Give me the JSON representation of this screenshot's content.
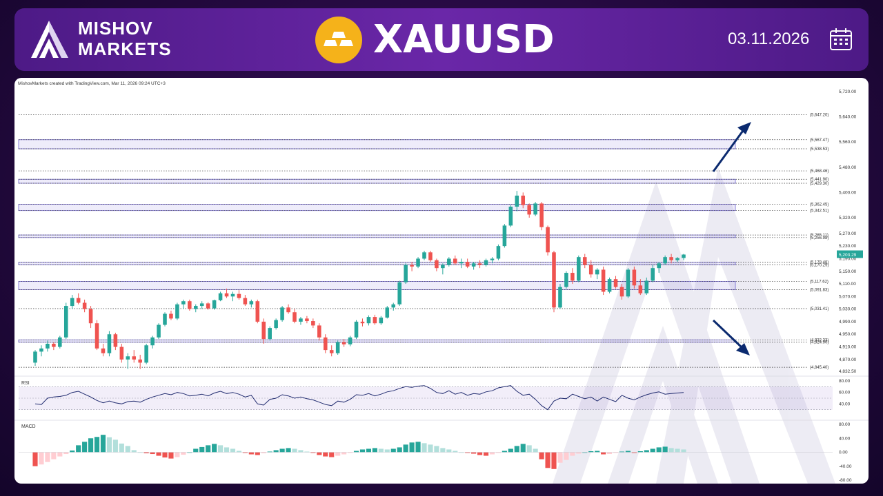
{
  "header": {
    "brand_line1": "MISHOV",
    "brand_line2": "MARKETS",
    "symbol": "XAUUSD",
    "date": "03.11.2026",
    "colors": {
      "header_bg": "#5b2097",
      "gold": "#f5b21a",
      "page_bg": "#24093f"
    }
  },
  "icons": {
    "logo": "mishov-logo-icon",
    "gold": "gold-bars-icon",
    "calendar": "calendar-icon"
  },
  "chart_meta": {
    "credit": "MishovMarkets created with TradingView.com, Mar 11, 2026 09:24 UTC+3",
    "rsi_title": "RSI",
    "macd_title": "MACD"
  },
  "chart_data": {
    "type": "candlestick",
    "price_axis": {
      "min": 4832.5,
      "max": 5720,
      "ticks": [
        "5,720.00",
        "5,640.00",
        "5,560.00",
        "5,480.00",
        "5,400.00",
        "5,320.00",
        "5,270.00",
        "5,230.00",
        "5,190.00",
        "5,150.00",
        "5,110.00",
        "5,070.00",
        "5,030.00",
        "4,990.00",
        "4,950.00",
        "4,910.00",
        "4,870.00",
        "4,832.50"
      ]
    },
    "current_price": "5,203.29",
    "levels": [
      "5,647.20",
      "5,567.47",
      "5,538.53",
      "5,468.46",
      "5,441.90",
      "5,429.30",
      "5,362.45",
      "5,342.51",
      "5,265.11",
      "5,256.98",
      "5,178.48",
      "5,170.29",
      "5,117.62",
      "5,091.83",
      "5,031.41",
      "4,932.33",
      "4,924.90",
      "4,845.40"
    ],
    "zones": [
      [
        5538.53,
        5567.47
      ],
      [
        5429.3,
        5441.9
      ],
      [
        5342.51,
        5362.45
      ],
      [
        5256.98,
        5265.11
      ],
      [
        5170.29,
        5178.48
      ],
      [
        5091.83,
        5117.62
      ],
      [
        4924.9,
        4932.33
      ]
    ],
    "candles": [
      [
        4860,
        4900,
        4850,
        4895
      ],
      [
        4895,
        4915,
        4880,
        4905
      ],
      [
        4905,
        4930,
        4895,
        4920
      ],
      [
        4920,
        4925,
        4900,
        4910
      ],
      [
        4910,
        4945,
        4905,
        4940
      ],
      [
        4940,
        5050,
        4935,
        5040
      ],
      [
        5040,
        5075,
        5030,
        5065
      ],
      [
        5065,
        5080,
        5045,
        5050
      ],
      [
        5050,
        5060,
        5020,
        5030
      ],
      [
        5030,
        5040,
        4970,
        4985
      ],
      [
        4985,
        4995,
        4900,
        4905
      ],
      [
        4905,
        4920,
        4880,
        4890
      ],
      [
        4890,
        4960,
        4880,
        4950
      ],
      [
        4950,
        4955,
        4900,
        4910
      ],
      [
        4910,
        4920,
        4860,
        4870
      ],
      [
        4870,
        4890,
        4840,
        4880
      ],
      [
        4880,
        4900,
        4860,
        4870
      ],
      [
        4870,
        4885,
        4840,
        4860
      ],
      [
        4860,
        4920,
        4855,
        4915
      ],
      [
        4915,
        4945,
        4905,
        4940
      ],
      [
        4940,
        4985,
        4935,
        4980
      ],
      [
        4980,
        5020,
        4975,
        5015
      ],
      [
        5015,
        5025,
        4995,
        5000
      ],
      [
        5000,
        5050,
        4995,
        5045
      ],
      [
        5045,
        5060,
        5030,
        5055
      ],
      [
        5055,
        5060,
        5025,
        5030
      ],
      [
        5030,
        5045,
        5020,
        5040
      ],
      [
        5040,
        5055,
        5030,
        5048
      ],
      [
        5048,
        5052,
        5028,
        5032
      ],
      [
        5032,
        5060,
        5028,
        5058
      ],
      [
        5058,
        5085,
        5055,
        5080
      ],
      [
        5080,
        5095,
        5065,
        5070
      ],
      [
        5070,
        5085,
        5055,
        5078
      ],
      [
        5078,
        5090,
        5060,
        5065
      ],
      [
        5065,
        5075,
        5040,
        5045
      ],
      [
        5045,
        5060,
        5035,
        5055
      ],
      [
        5055,
        5060,
        4985,
        4990
      ],
      [
        4990,
        5000,
        4920,
        4935
      ],
      [
        4935,
        4975,
        4930,
        4970
      ],
      [
        4970,
        5000,
        4965,
        4995
      ],
      [
        4995,
        5040,
        4990,
        5035
      ],
      [
        5035,
        5045,
        5015,
        5020
      ],
      [
        5020,
        5030,
        4985,
        4990
      ],
      [
        4990,
        5005,
        4980,
        5000
      ],
      [
        5000,
        5008,
        4985,
        4992
      ],
      [
        4992,
        5000,
        4970,
        4978
      ],
      [
        4978,
        4985,
        4930,
        4940
      ],
      [
        4940,
        4950,
        4890,
        4900
      ],
      [
        4900,
        4915,
        4880,
        4890
      ],
      [
        4890,
        4930,
        4885,
        4925
      ],
      [
        4925,
        4935,
        4910,
        4918
      ],
      [
        4918,
        4945,
        4912,
        4940
      ],
      [
        4940,
        4995,
        4935,
        4990
      ],
      [
        4990,
        5000,
        4975,
        4985
      ],
      [
        4985,
        5010,
        4978,
        5005
      ],
      [
        5005,
        5012,
        4980,
        4985
      ],
      [
        4985,
        5008,
        4980,
        5003
      ],
      [
        5003,
        5040,
        5000,
        5035
      ],
      [
        5035,
        5050,
        5025,
        5045
      ],
      [
        5045,
        5120,
        5040,
        5115
      ],
      [
        5115,
        5175,
        5110,
        5170
      ],
      [
        5170,
        5180,
        5150,
        5165
      ],
      [
        5165,
        5195,
        5160,
        5190
      ],
      [
        5190,
        5215,
        5185,
        5210
      ],
      [
        5210,
        5215,
        5180,
        5185
      ],
      [
        5185,
        5190,
        5150,
        5160
      ],
      [
        5160,
        5175,
        5140,
        5170
      ],
      [
        5170,
        5195,
        5165,
        5190
      ],
      [
        5190,
        5200,
        5170,
        5175
      ],
      [
        5175,
        5190,
        5160,
        5180
      ],
      [
        5180,
        5190,
        5160,
        5165
      ],
      [
        5165,
        5180,
        5155,
        5175
      ],
      [
        5175,
        5185,
        5160,
        5170
      ],
      [
        5170,
        5190,
        5165,
        5185
      ],
      [
        5185,
        5195,
        5175,
        5190
      ],
      [
        5190,
        5235,
        5185,
        5230
      ],
      [
        5230,
        5300,
        5225,
        5295
      ],
      [
        5295,
        5360,
        5290,
        5355
      ],
      [
        5355,
        5405,
        5340,
        5390
      ],
      [
        5390,
        5400,
        5350,
        5360
      ],
      [
        5360,
        5365,
        5320,
        5330
      ],
      [
        5330,
        5370,
        5325,
        5365
      ],
      [
        5365,
        5370,
        5280,
        5290
      ],
      [
        5290,
        5295,
        5200,
        5210
      ],
      [
        5210,
        5215,
        5020,
        5035
      ],
      [
        5035,
        5110,
        5030,
        5100
      ],
      [
        5100,
        5150,
        5095,
        5145
      ],
      [
        5145,
        5160,
        5110,
        5120
      ],
      [
        5120,
        5200,
        5115,
        5195
      ],
      [
        5195,
        5205,
        5160,
        5170
      ],
      [
        5170,
        5185,
        5130,
        5140
      ],
      [
        5140,
        5160,
        5125,
        5155
      ],
      [
        5155,
        5165,
        5075,
        5085
      ],
      [
        5085,
        5130,
        5080,
        5125
      ],
      [
        5125,
        5135,
        5095,
        5100
      ],
      [
        5100,
        5110,
        5060,
        5070
      ],
      [
        5070,
        5160,
        5065,
        5155
      ],
      [
        5155,
        5165,
        5095,
        5105
      ],
      [
        5105,
        5125,
        5075,
        5080
      ],
      [
        5080,
        5130,
        5075,
        5120
      ],
      [
        5120,
        5170,
        5115,
        5160
      ],
      [
        5160,
        5180,
        5145,
        5175
      ],
      [
        5175,
        5200,
        5170,
        5195
      ],
      [
        5195,
        5205,
        5175,
        5185
      ],
      [
        5185,
        5195,
        5180,
        5192
      ],
      [
        5192,
        5205,
        5185,
        5203
      ]
    ],
    "rsi": {
      "range": [
        20,
        80
      ],
      "ticks": [
        "80.00",
        "60.00",
        "40.00"
      ],
      "band": [
        30,
        70
      ],
      "values": [
        40,
        39,
        50,
        52,
        53,
        55,
        60,
        62,
        57,
        52,
        46,
        42,
        45,
        42,
        40,
        44,
        45,
        43,
        48,
        52,
        55,
        58,
        56,
        60,
        58,
        54,
        55,
        57,
        54,
        59,
        62,
        58,
        60,
        57,
        52,
        55,
        40,
        38,
        48,
        50,
        56,
        54,
        50,
        52,
        49,
        47,
        43,
        39,
        37,
        45,
        43,
        48,
        56,
        55,
        58,
        54,
        57,
        61,
        63,
        67,
        70,
        69,
        71,
        72,
        67,
        60,
        58,
        63,
        57,
        60,
        55,
        58,
        57,
        61,
        63,
        68,
        70,
        72,
        62,
        55,
        57,
        48,
        37,
        30,
        45,
        50,
        49,
        57,
        53,
        49,
        52,
        45,
        52,
        48,
        44,
        55,
        50,
        47,
        52,
        56,
        59,
        61,
        57,
        58,
        59,
        60
      ]
    },
    "macd": {
      "range": [
        -80,
        80
      ],
      "ticks": [
        "80.00",
        "40.00",
        "0.00",
        "-40.00",
        "-80.00"
      ],
      "values": [
        -40,
        -35,
        -28,
        -20,
        -12,
        -5,
        5,
        20,
        30,
        40,
        44,
        50,
        43,
        36,
        25,
        18,
        6,
        0,
        -3,
        -5,
        -10,
        -15,
        -18,
        -14,
        -7,
        0,
        10,
        15,
        20,
        24,
        20,
        14,
        10,
        4,
        -2,
        -6,
        -8,
        -3,
        2,
        6,
        10,
        12,
        10,
        6,
        2,
        -2,
        -8,
        -12,
        -14,
        -10,
        -6,
        -2,
        4,
        8,
        10,
        12,
        10,
        8,
        10,
        14,
        22,
        28,
        30,
        26,
        22,
        18,
        12,
        8,
        4,
        0,
        -2,
        -4,
        -8,
        -10,
        -6,
        -2,
        4,
        10,
        18,
        24,
        20,
        10,
        -20,
        -45,
        -48,
        -30,
        -22,
        -10,
        -4,
        0,
        3,
        4,
        -6,
        -5,
        -2,
        2,
        4,
        -2,
        3,
        6,
        10,
        14,
        16,
        12,
        10,
        8
      ]
    },
    "annotations": [
      {
        "type": "arrow",
        "direction": "up"
      },
      {
        "type": "arrow",
        "direction": "down"
      }
    ]
  }
}
